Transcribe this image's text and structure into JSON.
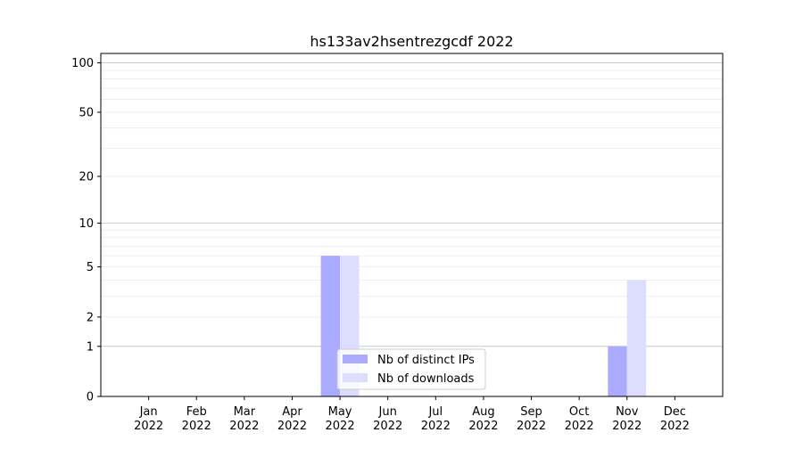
{
  "chart_data": {
    "type": "bar",
    "title": "hs133av2hsentrezgcdf 2022",
    "xlabel": "",
    "ylabel": "",
    "y_scale": "log(1+y)",
    "ylim": [
      0,
      114
    ],
    "grid": true,
    "legend_placement": "lower-center",
    "categories": [
      "Jan\n2022",
      "Feb\n2022",
      "Mar\n2022",
      "Apr\n2022",
      "May\n2022",
      "Jun\n2022",
      "Jul\n2022",
      "Aug\n2022",
      "Sep\n2022",
      "Oct\n2022",
      "Nov\n2022",
      "Dec\n2022"
    ],
    "y_ticks": [
      0,
      1,
      2,
      5,
      10,
      20,
      50,
      100
    ],
    "series": [
      {
        "name": "Nb of distinct IPs",
        "color": "#aaaaff",
        "values": [
          0,
          0,
          0,
          0,
          6,
          0,
          0,
          0,
          0,
          0,
          1,
          0
        ]
      },
      {
        "name": "Nb of downloads",
        "color": "#ddddff",
        "values": [
          0,
          0,
          0,
          0,
          6,
          0,
          0,
          0,
          0,
          0,
          4,
          0
        ]
      }
    ]
  }
}
